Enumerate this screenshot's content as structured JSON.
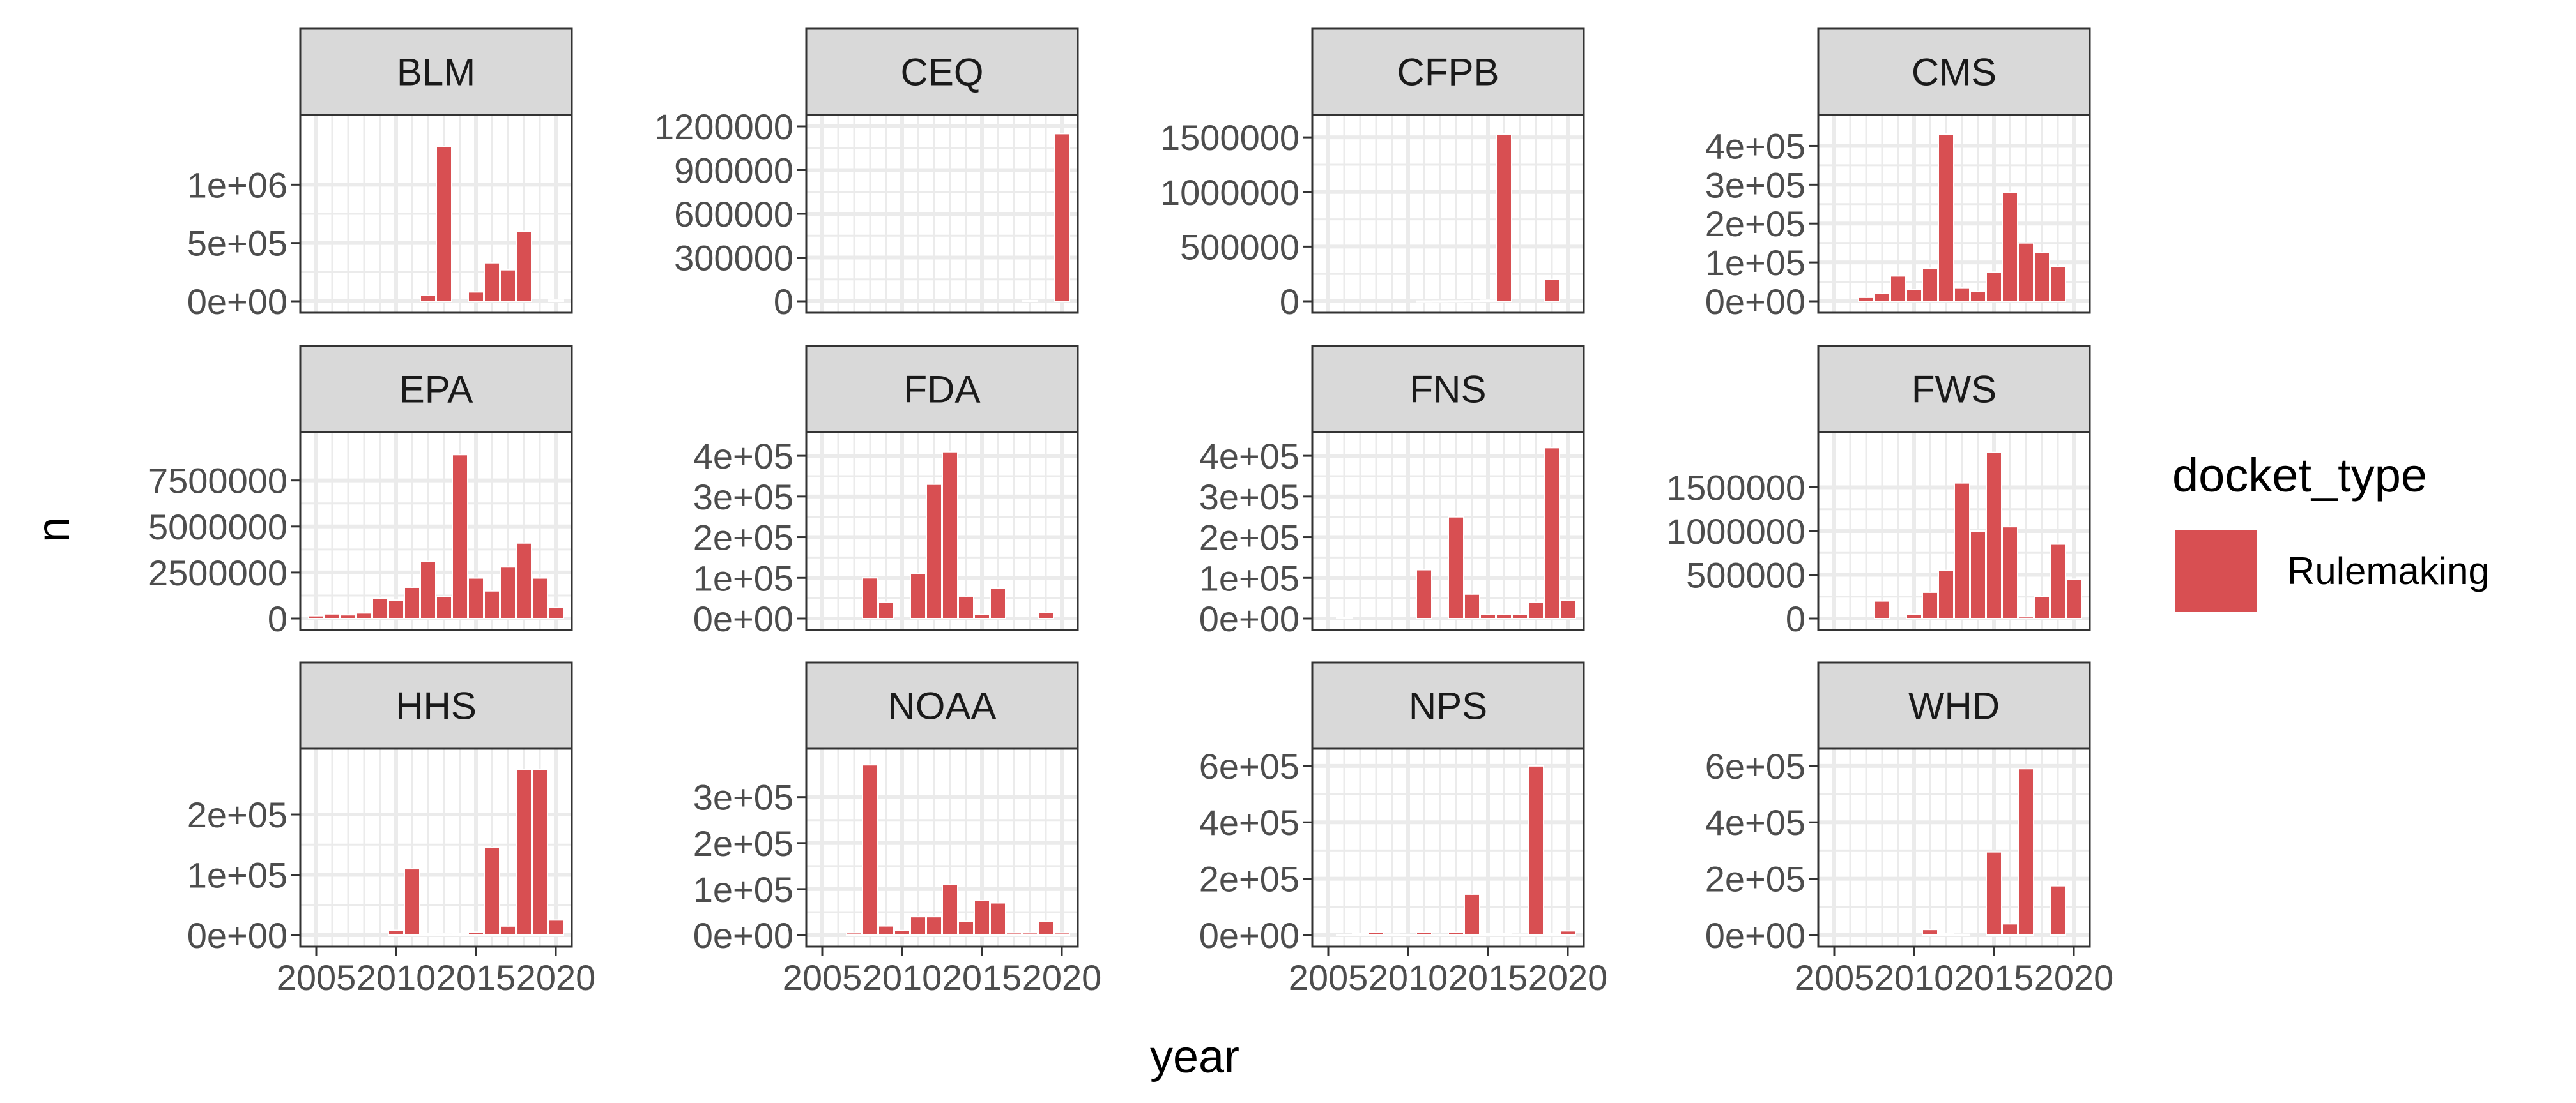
{
  "colors": {
    "bar": "#d84f52",
    "strip": "#d9d9d9",
    "grid": "#ebebeb"
  },
  "chart_data": {
    "type": "bar",
    "xlabel": "year",
    "ylabel": "n",
    "x_ticks": [
      2005,
      2010,
      2015,
      2020
    ],
    "xlim": [
      2004,
      2021
    ],
    "legend": {
      "title": "docket_type",
      "entries": [
        "Rulemaking"
      ],
      "position": "right"
    },
    "facets": [
      {
        "name": "BLM",
        "ylim": [
          0,
          1500000
        ],
        "ticks": [
          {
            "v": 0,
            "l": "0e+00"
          },
          {
            "v": 500000,
            "l": "5e+05"
          },
          {
            "v": 1000000,
            "l": "1e+06"
          }
        ],
        "years": [
          2005,
          2006,
          2007,
          2008,
          2009,
          2010,
          2011,
          2012,
          2013,
          2014,
          2015,
          2016,
          2017,
          2018,
          2019,
          2020
        ],
        "values": [
          0,
          0,
          0,
          0,
          0,
          0,
          0,
          50000,
          1330000,
          0,
          80000,
          330000,
          270000,
          600000,
          0,
          10000
        ]
      },
      {
        "name": "CEQ",
        "ylim": [
          0,
          1200000
        ],
        "ticks": [
          {
            "v": 0,
            "l": "0"
          },
          {
            "v": 300000,
            "l": "300000"
          },
          {
            "v": 600000,
            "l": "600000"
          },
          {
            "v": 900000,
            "l": "900000"
          },
          {
            "v": 1200000,
            "l": "1200000"
          }
        ],
        "years": [
          2018,
          2020
        ],
        "values": [
          5000,
          1150000
        ]
      },
      {
        "name": "CFPB",
        "ylim": [
          0,
          1600000
        ],
        "ticks": [
          {
            "v": 0,
            "l": "0"
          },
          {
            "v": 500000,
            "l": "500000"
          },
          {
            "v": 1000000,
            "l": "1000000"
          },
          {
            "v": 1500000,
            "l": "1500000"
          }
        ],
        "years": [
          2011,
          2012,
          2013,
          2014,
          2015,
          2016,
          2017,
          2018,
          2019
        ],
        "values": [
          2000,
          3000,
          4000,
          5000,
          10000,
          1530000,
          0,
          0,
          200000
        ]
      },
      {
        "name": "CMS",
        "ylim": [
          0,
          450000
        ],
        "ticks": [
          {
            "v": 0,
            "l": "0e+00"
          },
          {
            "v": 100000,
            "l": "1e+05"
          },
          {
            "v": 200000,
            "l": "2e+05"
          },
          {
            "v": 300000,
            "l": "3e+05"
          },
          {
            "v": 400000,
            "l": "4e+05"
          }
        ],
        "years": [
          2007,
          2008,
          2009,
          2010,
          2011,
          2012,
          2013,
          2014,
          2015,
          2016,
          2017,
          2018,
          2019,
          2020
        ],
        "values": [
          10000,
          20000,
          65000,
          30000,
          85000,
          430000,
          35000,
          25000,
          75000,
          280000,
          150000,
          125000,
          90000,
          0
        ]
      },
      {
        "name": "EPA",
        "ylim": [
          0,
          9500000
        ],
        "ticks": [
          {
            "v": 0,
            "l": "0"
          },
          {
            "v": 2500000,
            "l": "2500000"
          },
          {
            "v": 5000000,
            "l": "5000000"
          },
          {
            "v": 7500000,
            "l": "7500000"
          }
        ],
        "years": [
          2005,
          2006,
          2007,
          2008,
          2009,
          2010,
          2011,
          2012,
          2013,
          2014,
          2015,
          2016,
          2017,
          2018,
          2019,
          2020
        ],
        "values": [
          150000,
          250000,
          200000,
          300000,
          1100000,
          1000000,
          1700000,
          3100000,
          1200000,
          8900000,
          2200000,
          1500000,
          2800000,
          4100000,
          2200000,
          600000
        ]
      },
      {
        "name": "FDA",
        "ylim": [
          0,
          430000
        ],
        "ticks": [
          {
            "v": 0,
            "l": "0e+00"
          },
          {
            "v": 100000,
            "l": "1e+05"
          },
          {
            "v": 200000,
            "l": "2e+05"
          },
          {
            "v": 300000,
            "l": "3e+05"
          },
          {
            "v": 400000,
            "l": "4e+05"
          }
        ],
        "years": [
          2008,
          2009,
          2010,
          2011,
          2012,
          2013,
          2014,
          2015,
          2016,
          2017,
          2018,
          2019
        ],
        "values": [
          100000,
          40000,
          0,
          110000,
          330000,
          410000,
          55000,
          10000,
          75000,
          0,
          0,
          15000
        ]
      },
      {
        "name": "FNS",
        "ylim": [
          0,
          430000
        ],
        "ticks": [
          {
            "v": 0,
            "l": "0e+00"
          },
          {
            "v": 100000,
            "l": "1e+05"
          },
          {
            "v": 200000,
            "l": "2e+05"
          },
          {
            "v": 300000,
            "l": "3e+05"
          },
          {
            "v": 400000,
            "l": "4e+05"
          }
        ],
        "years": [
          2006,
          2007,
          2008,
          2009,
          2010,
          2011,
          2012,
          2013,
          2014,
          2015,
          2016,
          2017,
          2018,
          2019,
          2020
        ],
        "values": [
          3000,
          0,
          0,
          0,
          0,
          120000,
          0,
          250000,
          60000,
          10000,
          10000,
          10000,
          40000,
          420000,
          45000
        ]
      },
      {
        "name": "FWS",
        "ylim": [
          0,
          2000000
        ],
        "ticks": [
          {
            "v": 0,
            "l": "0"
          },
          {
            "v": 500000,
            "l": "500000"
          },
          {
            "v": 1000000,
            "l": "1000000"
          },
          {
            "v": 1500000,
            "l": "1500000"
          }
        ],
        "years": [
          2008,
          2009,
          2010,
          2011,
          2012,
          2013,
          2014,
          2015,
          2016,
          2017,
          2018,
          2019,
          2020
        ],
        "values": [
          200000,
          0,
          50000,
          300000,
          550000,
          1550000,
          1000000,
          1900000,
          1050000,
          20000,
          250000,
          850000,
          450000
        ]
      },
      {
        "name": "HHS",
        "ylim": [
          0,
          290000
        ],
        "ticks": [
          {
            "v": 0,
            "l": "0e+00"
          },
          {
            "v": 100000,
            "l": "1e+05"
          },
          {
            "v": 200000,
            "l": "2e+05"
          }
        ],
        "years": [
          2010,
          2011,
          2012,
          2013,
          2014,
          2015,
          2016,
          2017,
          2018,
          2019,
          2020
        ],
        "values": [
          8000,
          110000,
          3000,
          2000,
          3000,
          5000,
          145000,
          15000,
          275000,
          275000,
          25000
        ]
      },
      {
        "name": "NOAA",
        "ylim": [
          0,
          380000
        ],
        "ticks": [
          {
            "v": 0,
            "l": "0e+00"
          },
          {
            "v": 100000,
            "l": "1e+05"
          },
          {
            "v": 200000,
            "l": "2e+05"
          },
          {
            "v": 300000,
            "l": "3e+05"
          }
        ],
        "years": [
          2007,
          2008,
          2009,
          2010,
          2011,
          2012,
          2013,
          2014,
          2015,
          2016,
          2017,
          2018,
          2019,
          2020
        ],
        "values": [
          5000,
          370000,
          20000,
          10000,
          40000,
          40000,
          110000,
          30000,
          75000,
          70000,
          5000,
          5000,
          30000,
          5000
        ]
      },
      {
        "name": "NPS",
        "ylim": [
          0,
          620000
        ],
        "ticks": [
          {
            "v": 0,
            "l": "0e+00"
          },
          {
            "v": 200000,
            "l": "2e+05"
          },
          {
            "v": 400000,
            "l": "4e+05"
          },
          {
            "v": 600000,
            "l": "6e+05"
          }
        ],
        "years": [
          2006,
          2007,
          2008,
          2009,
          2010,
          2011,
          2012,
          2013,
          2014,
          2015,
          2016,
          2017,
          2018,
          2019,
          2020
        ],
        "values": [
          2000,
          5000,
          10000,
          3000,
          2000,
          10000,
          2000,
          10000,
          145000,
          5000,
          5000,
          3000,
          600000,
          5000,
          15000
        ]
      },
      {
        "name": "WHD",
        "ylim": [
          0,
          620000
        ],
        "ticks": [
          {
            "v": 0,
            "l": "0e+00"
          },
          {
            "v": 200000,
            "l": "2e+05"
          },
          {
            "v": 400000,
            "l": "4e+05"
          },
          {
            "v": 600000,
            "l": "6e+05"
          }
        ],
        "years": [
          2011,
          2012,
          2013,
          2014,
          2015,
          2016,
          2017,
          2018,
          2019
        ],
        "values": [
          20000,
          5000,
          3000,
          0,
          295000,
          40000,
          590000,
          0,
          175000
        ]
      }
    ]
  }
}
